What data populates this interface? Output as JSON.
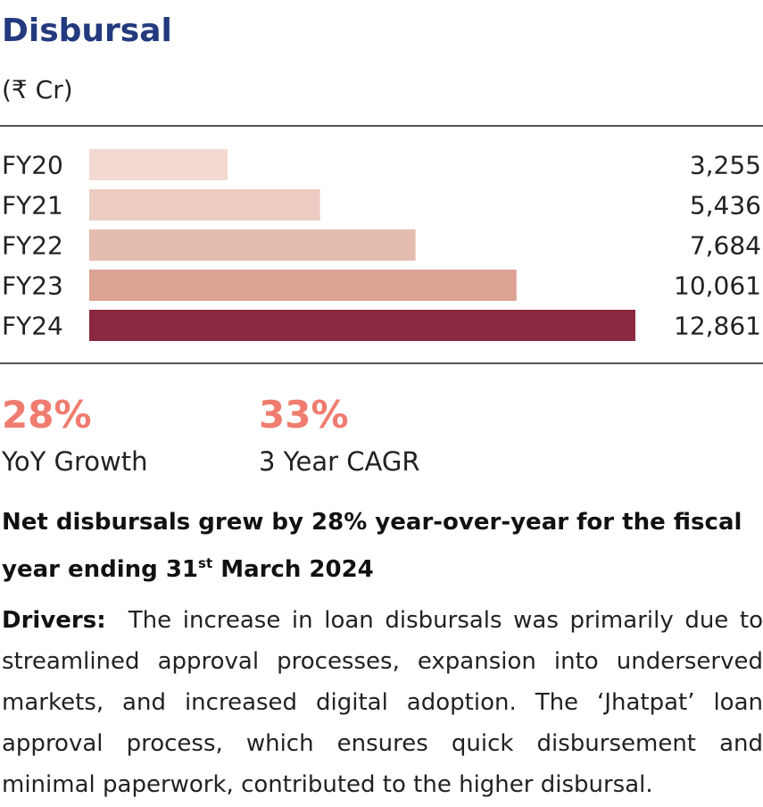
{
  "header": {
    "title": "Disbursal",
    "unit": "(₹ Cr)"
  },
  "chart_data": {
    "type": "bar",
    "orientation": "horizontal",
    "categories": [
      "FY20",
      "FY21",
      "FY22",
      "FY23",
      "FY24"
    ],
    "values": [
      3255,
      5436,
      7684,
      10061,
      12861
    ],
    "value_labels": [
      "3,255",
      "5,436",
      "7,684",
      "10,061",
      "12,861"
    ],
    "colors": [
      "#f2d9d1",
      "#ecccc1",
      "#e5bcb0",
      "#dca293",
      "#8a2840"
    ],
    "title": "Disbursal",
    "unit": "(₹ Cr)",
    "grid": false,
    "legend": "none"
  },
  "stats": [
    {
      "value": "28%",
      "label": "YoY Growth"
    },
    {
      "value": "33%",
      "label": "3 Year CAGR"
    }
  ],
  "highlight": {
    "text_before": "Net disbursals grew by 28% year-over-year for the fiscal year ending 31",
    "sup": "st",
    "text_after": " March 2024"
  },
  "drivers": {
    "label": "Drivers:",
    "text": "The increase in loan disbursals was primarily due to streamlined approval processes, expansion into underserved markets, and increased digital adoption. The ‘Jhatpat’ loan approval process, which ensures quick disbursement and minimal paperwork, contributed to the higher disbursal."
  }
}
